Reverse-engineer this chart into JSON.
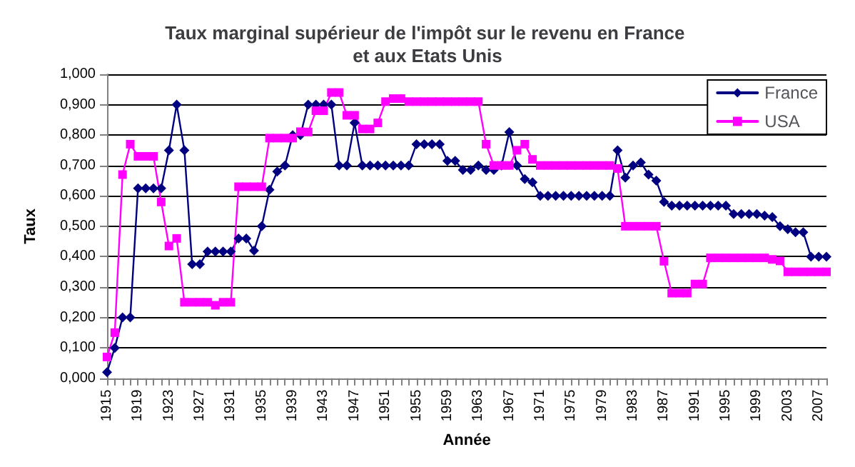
{
  "chart_data": {
    "type": "line",
    "title": "Taux marginal supérieur de l'impôt sur le revenu en France et aux Etats Unis",
    "xlabel": "Année",
    "ylabel": "Taux",
    "categories": [
      "1915",
      null,
      null,
      null,
      "1919",
      null,
      null,
      null,
      "1923",
      null,
      null,
      null,
      "1927",
      null,
      null,
      null,
      "1931",
      null,
      null,
      null,
      "1935",
      null,
      null,
      null,
      "1939",
      null,
      null,
      null,
      "1943",
      null,
      null,
      null,
      "1947",
      null,
      null,
      null,
      "1951",
      null,
      null,
      null,
      "1955",
      null,
      null,
      null,
      "1959",
      null,
      null,
      null,
      "1963",
      null,
      null,
      null,
      "1967",
      null,
      null,
      null,
      "1971",
      null,
      null,
      null,
      "1975",
      null,
      null,
      null,
      "1979",
      null,
      null,
      null,
      "1983",
      null,
      null,
      null,
      "1987",
      null,
      null,
      null,
      "1991",
      null,
      null,
      null,
      "1995",
      null,
      null,
      null,
      "1999",
      null,
      null,
      null,
      "2003",
      null,
      null,
      null,
      "2007",
      null
    ],
    "series": [
      {
        "name": "France",
        "color": "#000080",
        "marker": "diamond",
        "values": [
          0.02,
          0.1,
          0.2,
          0.2,
          0.625,
          0.625,
          0.625,
          0.625,
          0.75,
          0.9,
          0.75,
          0.375,
          0.375,
          0.417,
          0.417,
          0.417,
          0.417,
          0.46,
          0.46,
          0.42,
          0.5,
          0.62,
          0.68,
          0.7,
          0.8,
          0.8,
          0.9,
          0.9,
          0.9,
          0.9,
          0.7,
          0.7,
          0.84,
          0.7,
          0.7,
          0.7,
          0.7,
          0.7,
          0.7,
          0.7,
          0.77,
          0.77,
          0.77,
          0.77,
          0.715,
          0.715,
          0.685,
          0.685,
          0.7,
          0.685,
          0.685,
          0.7,
          0.81,
          0.7,
          0.655,
          0.645,
          0.6,
          0.6,
          0.6,
          0.6,
          0.6,
          0.6,
          0.6,
          0.6,
          0.6,
          0.6,
          0.75,
          0.66,
          0.7,
          0.71,
          0.67,
          0.65,
          0.58,
          0.568,
          0.568,
          0.568,
          0.568,
          0.568,
          0.568,
          0.568,
          0.568,
          0.54,
          0.54,
          0.54,
          0.54,
          0.535,
          0.53,
          0.5,
          0.49,
          0.48,
          0.48,
          0.4,
          0.4,
          0.4
        ]
      },
      {
        "name": "USA",
        "color": "#ff00ff",
        "marker": "square",
        "values": [
          0.07,
          0.15,
          0.67,
          0.77,
          0.73,
          0.73,
          0.73,
          0.58,
          0.435,
          0.46,
          0.25,
          0.25,
          0.25,
          0.25,
          0.24,
          0.25,
          0.25,
          0.63,
          0.63,
          0.63,
          0.63,
          0.79,
          0.79,
          0.79,
          0.79,
          0.811,
          0.81,
          0.88,
          0.88,
          0.94,
          0.94,
          0.865,
          0.865,
          0.82,
          0.82,
          0.84,
          0.91,
          0.92,
          0.92,
          0.91,
          0.91,
          0.91,
          0.91,
          0.91,
          0.91,
          0.91,
          0.91,
          0.91,
          0.91,
          0.77,
          0.7,
          0.7,
          0.7,
          0.75,
          0.77,
          0.72,
          0.7,
          0.7,
          0.7,
          0.7,
          0.7,
          0.7,
          0.7,
          0.7,
          0.7,
          0.7,
          0.69,
          0.5,
          0.5,
          0.5,
          0.5,
          0.5,
          0.385,
          0.28,
          0.28,
          0.28,
          0.31,
          0.31,
          0.396,
          0.396,
          0.396,
          0.396,
          0.396,
          0.396,
          0.396,
          0.396,
          0.391,
          0.386,
          0.35,
          0.35,
          0.35,
          0.35,
          0.35,
          0.35
        ]
      }
    ],
    "ylim": [
      0,
      1
    ],
    "yticks": [
      {
        "value": 0,
        "label": "0,000"
      },
      {
        "value": 0.1,
        "label": "0,100"
      },
      {
        "value": 0.2,
        "label": "0,200"
      },
      {
        "value": 0.3,
        "label": "0,300"
      },
      {
        "value": 0.4,
        "label": "0,400"
      },
      {
        "value": 0.5,
        "label": "0,500"
      },
      {
        "value": 0.6,
        "label": "0,600"
      },
      {
        "value": 0.7,
        "label": "0,700"
      },
      {
        "value": 0.8,
        "label": "0,800"
      },
      {
        "value": 0.9,
        "label": "0,900"
      },
      {
        "value": 1,
        "label": "1,000"
      }
    ],
    "grid": "y",
    "legend": "top right",
    "line_style": "solid"
  }
}
